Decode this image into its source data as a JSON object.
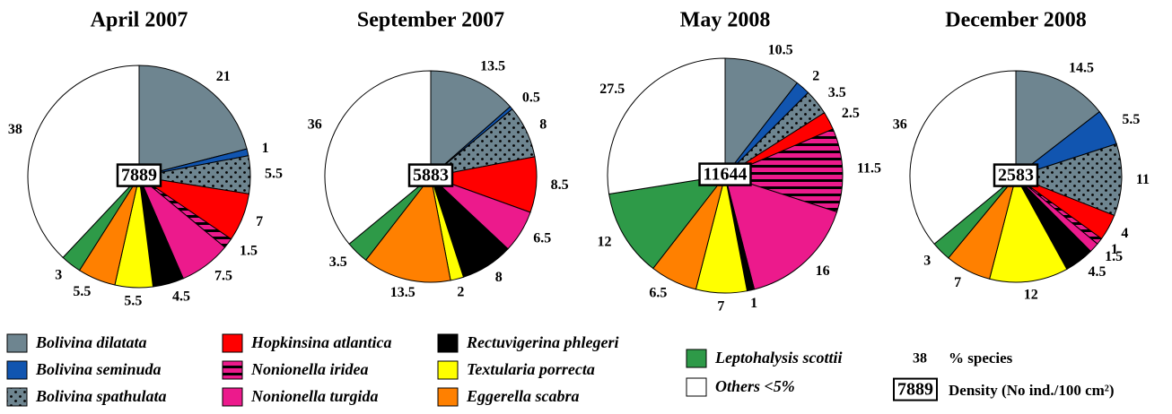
{
  "chart_data": [
    {
      "type": "pie",
      "title": "April 2007",
      "density": 7889,
      "values": [
        21,
        1,
        5.5,
        7,
        1.5,
        7.5,
        4.5,
        5.5,
        5.5,
        3,
        38
      ]
    },
    {
      "type": "pie",
      "title": "September 2007",
      "density": 5883,
      "values": [
        13.5,
        0.5,
        8,
        8.5,
        null,
        6.5,
        8,
        2,
        13.5,
        3.5,
        36
      ]
    },
    {
      "type": "pie",
      "title": "May 2008",
      "density": 11644,
      "values": [
        10.5,
        2,
        3.5,
        2.5,
        11.5,
        16,
        1,
        7,
        6.5,
        12,
        27.5
      ]
    },
    {
      "type": "pie",
      "title": "December 2008",
      "density": 2583,
      "values": [
        14.5,
        5.5,
        11,
        4,
        1,
        1.5,
        4.5,
        12,
        7,
        3,
        36
      ]
    }
  ],
  "legend": {
    "items": [
      {
        "name": "Bolivina dilatata",
        "color": "#6e8590"
      },
      {
        "name": "Bolivina seminuda",
        "color": "#1155b0"
      },
      {
        "name": "Bolivina spathulata",
        "color": "#6e8590",
        "pattern": "dots"
      },
      {
        "name": "Hopkinsina atlantica",
        "color": "#ff0000"
      },
      {
        "name": "Nonionella iridea",
        "color": "#ec1a8c",
        "pattern": "stripes"
      },
      {
        "name": "Nonionella turgida",
        "color": "#ec1a8c"
      },
      {
        "name": "Rectuvigerina phlegeri",
        "color": "#000000"
      },
      {
        "name": "Textularia porrecta",
        "color": "#ffff00"
      },
      {
        "name": "Eggerella scabra",
        "color": "#ff8000"
      },
      {
        "name": "Leptohalysis scottii",
        "color": "#2e9a48"
      },
      {
        "name": "Others <5%",
        "color": "#ffffff"
      }
    ],
    "key": {
      "example_value": 38,
      "value_text": "% species",
      "example_density": 7889,
      "density_text": "Density (No ind./100 cm²)"
    }
  }
}
